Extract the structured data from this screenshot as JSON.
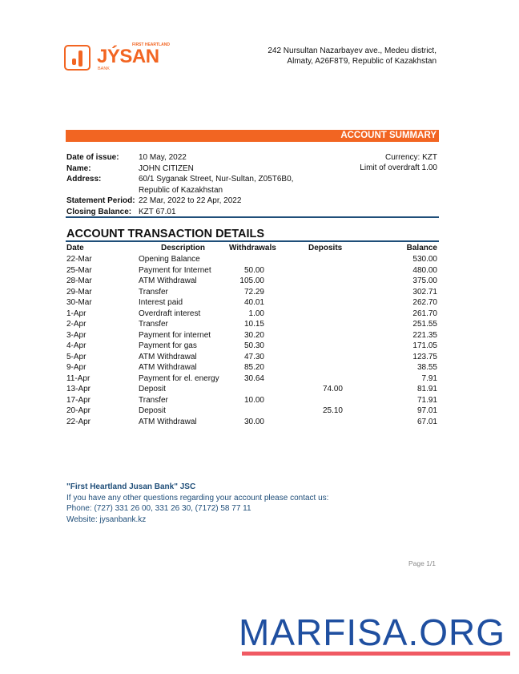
{
  "header": {
    "logo": {
      "brand": "JÝSAN",
      "top": "FIRST HEARTLAND",
      "bottom": "BANK"
    },
    "address_line1": "242 Nursultan Nazarbayev ave., Medeu district,",
    "address_line2": "Almaty, A26F8T9, Republic of Kazakhstan"
  },
  "summary": {
    "title": "ACCOUNT SUMMARY",
    "fields": [
      {
        "label": "Date of issue:",
        "value": "10 May, 2022"
      },
      {
        "label": "Name:",
        "value": "JOHN CITIZEN"
      },
      {
        "label": "Address:",
        "value": "60/1 Syganak Street, Nur-Sultan, Z05T6B0,"
      },
      {
        "label": "",
        "value": "Republic of Kazakhstan"
      },
      {
        "label": "Statement Period:",
        "value": "22 Mar, 2022 to 22 Apr, 2022"
      },
      {
        "label": "Closing Balance:",
        "value": "KZT 67.01"
      }
    ],
    "currency": "Currency: KZT",
    "overdraft": "Limit of overdraft 1.00"
  },
  "transactions": {
    "title": "ACCOUNT TRANSACTION DETAILS",
    "columns": [
      "Date",
      "Description",
      "Withdrawals",
      "Deposits",
      "Balance"
    ],
    "rows": [
      [
        "22-Mar",
        "Opening Balance",
        "",
        "",
        "530.00"
      ],
      [
        "25-Mar",
        "Payment for Internet",
        "50.00",
        "",
        "480.00"
      ],
      [
        "28-Mar",
        "ATM Withdrawal",
        "105.00",
        "",
        "375.00"
      ],
      [
        "29-Mar",
        "Transfer",
        "72.29",
        "",
        "302.71"
      ],
      [
        "30-Mar",
        "Interest paid",
        "40.01",
        "",
        "262.70"
      ],
      [
        "1-Apr",
        "Overdraft interest",
        "1.00",
        "",
        "261.70"
      ],
      [
        "2-Apr",
        "Transfer",
        "10.15",
        "",
        "251.55"
      ],
      [
        "3-Apr",
        "Payment for internet",
        "30.20",
        "",
        "221.35"
      ],
      [
        "4-Apr",
        "Payment for gas",
        "50.30",
        "",
        "171.05"
      ],
      [
        "5-Apr",
        "ATM Withdrawal",
        "47.30",
        "",
        "123.75"
      ],
      [
        "9-Apr",
        "ATM Withdrawal",
        "85.20",
        "",
        "38.55"
      ],
      [
        "11-Apr",
        "Payment for el. energy",
        "30.64",
        "",
        "7.91"
      ],
      [
        "13-Apr",
        "Deposit",
        "",
        "74.00",
        "81.91"
      ],
      [
        "17-Apr",
        "Transfer",
        "10.00",
        "",
        "71.91"
      ],
      [
        "20-Apr",
        "Deposit",
        "",
        "25.10",
        "97.01"
      ],
      [
        "22-Apr",
        "ATM Withdrawal",
        "30.00",
        "",
        "67.01"
      ]
    ]
  },
  "footer": {
    "company": "\"First Heartland Jusan Bank\" JSC",
    "contact": "If you have any other questions regarding your account please contact us:",
    "phone": "Phone: (727) 331 26 00, 331 26 30, (7172) 58 77 11",
    "website": "Website: jysanbank.kz",
    "page": "Page 1/1"
  },
  "watermark": "MARFISA.ORG",
  "colors": {
    "accent": "#f26522",
    "navy": "#1f4e79",
    "watermark": "#1f4fa0"
  }
}
